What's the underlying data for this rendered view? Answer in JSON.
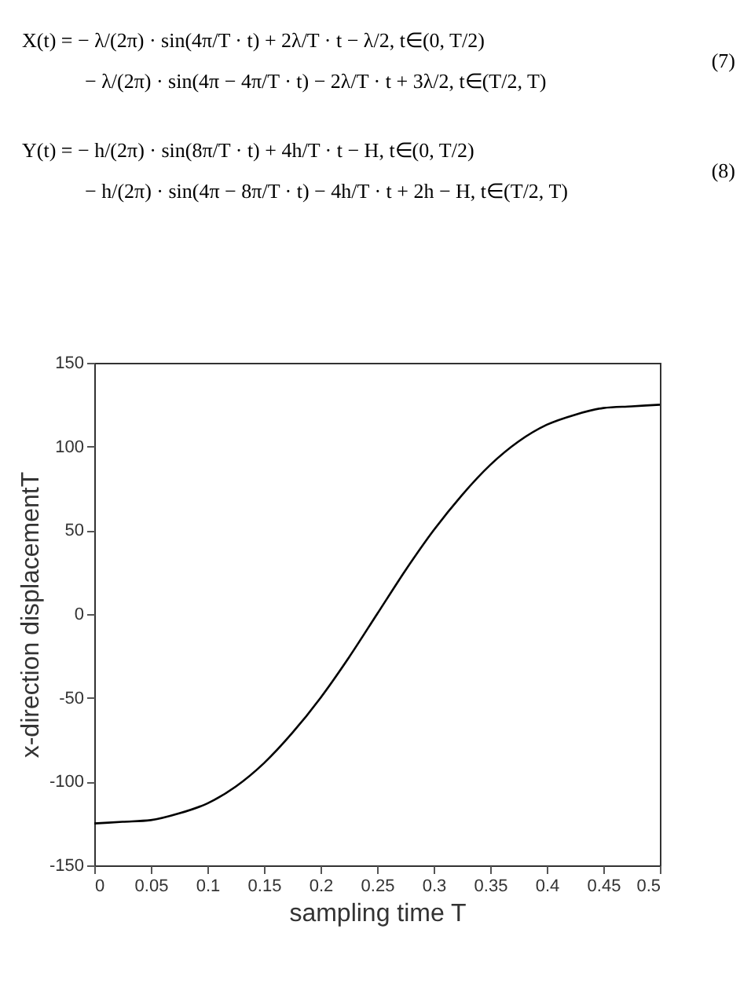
{
  "chart_data": {
    "type": "line",
    "annotations": [
      "X(t) = − λ/(2π) · sin(4π/T · t) + 2λ/T · t − λ/2,   t∈(0, T/2)",
      "− λ/(2π) · sin(4π − 4π/T · t) − 2λ/T · t + 3λ/2,   t∈(T/2, T)",
      "(7)",
      "Y(t) = − h/(2π) · sin(8π/T · t) + 4h/T · t − H,   t∈(0, T/2)",
      "− h/(2π) · sin(4π − 8π/T · t) − 4h/T · t + 2h − H,   t∈(T/2, T)",
      "(8)"
    ],
    "xlabel": "sampling time T",
    "ylabel": "x-direction displacementT",
    "x": [
      0,
      0.025,
      0.05,
      0.075,
      0.1,
      0.125,
      0.15,
      0.175,
      0.2,
      0.225,
      0.25,
      0.275,
      0.3,
      0.325,
      0.35,
      0.375,
      0.4,
      0.425,
      0.45,
      0.475,
      0.5
    ],
    "series": [
      {
        "color": "#000000",
        "values": [
          -125,
          -124,
          -123,
          -119,
          -113,
          -103,
          -89,
          -71,
          -50,
          -26,
          0,
          26,
          50,
          71,
          89,
          103,
          113,
          119,
          123,
          124,
          125
        ]
      }
    ],
    "xlim": [
      0,
      0.5
    ],
    "xticks": [
      0,
      0.05,
      0.1,
      0.15,
      0.2,
      0.25,
      0.3,
      0.35,
      0.4,
      0.45,
      0.5
    ],
    "ylim": [
      -150,
      150
    ],
    "yticks": [
      -150,
      -100,
      -50,
      0,
      50,
      100,
      150
    ],
    "legend": false,
    "marker": "none",
    "line_style": "solid"
  }
}
